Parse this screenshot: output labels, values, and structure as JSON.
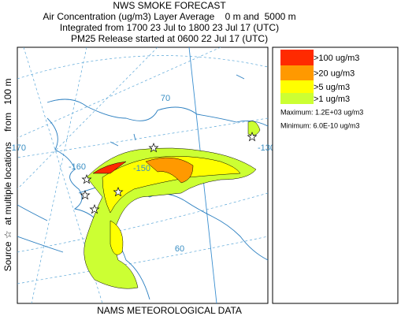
{
  "header": {
    "title": "NWS SMOKE FORECAST",
    "line1": "Air Concentration (ug/m3) Layer Average    0 m and  5000 m",
    "line2": "Integrated from 1700 23 Jul to 1800 23 Jul 17 (UTC)",
    "line3": "PM25 Release started at 0600 22 Jul 17 (UTC)"
  },
  "legend": {
    "items": [
      {
        "label": ">100 ug/m3",
        "color": "#ff2a00"
      },
      {
        "label": ">20 ug/m3",
        "color": "#ff9900"
      },
      {
        "label": ">5 ug/m3",
        "color": "#ffff00"
      },
      {
        "label": ">1 ug/m3",
        "color": "#ccff33"
      }
    ],
    "maximum": "Maximum: 1.2E+03 ug/m3",
    "minimum": "Minimum: 6.0E-10 ug/m3"
  },
  "side_label": "Source ☆  at multiple locations    from   100 m",
  "map": {
    "labels": [
      "70",
      "-170",
      "-160",
      "-150",
      "60",
      "-130"
    ]
  },
  "footer": "NAMS METEOROLOGICAL DATA"
}
